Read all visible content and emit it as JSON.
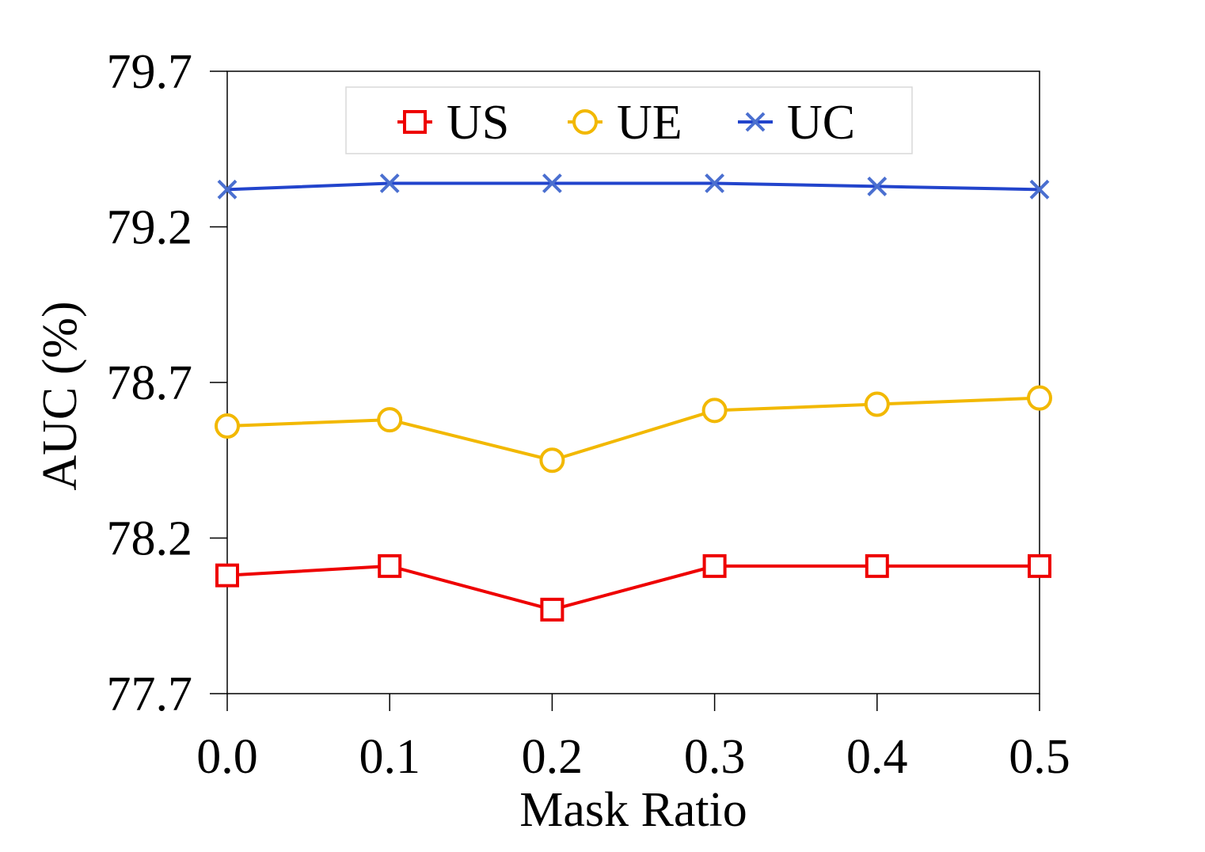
{
  "chart_data": {
    "type": "line",
    "title": "",
    "xlabel": "Mask Ratio",
    "ylabel": "AUC (%)",
    "x": [
      0.0,
      0.1,
      0.2,
      0.3,
      0.4,
      0.5
    ],
    "x_tick_labels": [
      "0.0",
      "0.1",
      "0.2",
      "0.3",
      "0.4",
      "0.5"
    ],
    "xlim": [
      0.0,
      0.5
    ],
    "ylim": [
      77.7,
      79.7
    ],
    "y_ticks": [
      77.7,
      78.2,
      78.7,
      79.2,
      79.7
    ],
    "y_tick_labels": [
      "77.7",
      "78.2",
      "78.7",
      "79.2",
      "79.7"
    ],
    "grid": false,
    "legend_position": "top-center",
    "series": [
      {
        "name": "US",
        "marker": "square",
        "color": "#ee0000",
        "values": [
          78.08,
          78.11,
          77.97,
          78.11,
          78.11,
          78.11
        ]
      },
      {
        "name": "UE",
        "marker": "circle",
        "color": "#f2b800",
        "values": [
          78.56,
          78.58,
          78.45,
          78.61,
          78.63,
          78.65
        ]
      },
      {
        "name": "UC",
        "marker": "x",
        "color": "#2244cc",
        "values": [
          79.32,
          79.34,
          79.34,
          79.34,
          79.33,
          79.32
        ]
      }
    ]
  }
}
